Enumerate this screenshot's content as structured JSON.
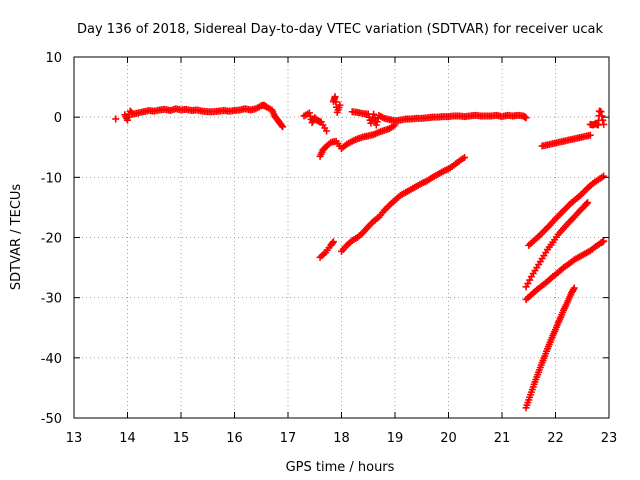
{
  "chart_data": {
    "type": "scatter",
    "title": "Day 136 of 2018, Sidereal Day-to-day VTEC variation (SDTVAR) for receiver ucak",
    "xlabel": "GPS time / hours",
    "ylabel": "SDTVAR / TECUs",
    "xlim": [
      13,
      23
    ],
    "ylim": [
      -50,
      10
    ],
    "xticks": [
      13,
      14,
      15,
      16,
      17,
      18,
      19,
      20,
      21,
      22,
      23
    ],
    "yticks": [
      10,
      0,
      -10,
      -20,
      -30,
      -40,
      -50
    ],
    "grid": true,
    "marker": "plus",
    "color": "#ff0000",
    "grid_color": "#a0a0a0",
    "series": [
      {
        "points": [
          [
            13.78,
            -0.3
          ],
          [
            13.95,
            0.4
          ],
          [
            14.0,
            -0.5
          ],
          [
            14.05,
            1.0
          ],
          [
            14.1,
            0.5
          ],
          [
            14.2,
            0.7
          ],
          [
            14.3,
            0.9
          ],
          [
            14.4,
            1.1
          ],
          [
            14.5,
            1.0
          ],
          [
            14.6,
            1.2
          ],
          [
            14.7,
            1.3
          ],
          [
            14.8,
            1.1
          ],
          [
            14.9,
            1.4
          ],
          [
            15.0,
            1.2
          ],
          [
            15.1,
            1.3
          ],
          [
            15.2,
            1.1
          ],
          [
            15.3,
            1.2
          ],
          [
            15.4,
            1.0
          ],
          [
            15.5,
            0.9
          ],
          [
            15.6,
            0.9
          ],
          [
            15.7,
            1.0
          ],
          [
            15.8,
            1.1
          ],
          [
            15.9,
            1.0
          ],
          [
            16.0,
            1.1
          ],
          [
            16.1,
            1.2
          ],
          [
            16.2,
            1.4
          ],
          [
            16.3,
            1.2
          ],
          [
            16.4,
            1.4
          ],
          [
            16.5,
            1.9
          ],
          [
            16.55,
            2.0
          ],
          [
            16.6,
            1.7
          ],
          [
            16.7,
            1.2
          ],
          [
            16.75,
            0.2
          ],
          [
            16.8,
            -0.4
          ],
          [
            16.85,
            -1.0
          ],
          [
            16.9,
            -1.6
          ]
        ]
      },
      {
        "points": [
          [
            17.3,
            0.2
          ],
          [
            17.4,
            0.7
          ],
          [
            17.45,
            -0.9
          ],
          [
            17.5,
            -0.1
          ],
          [
            17.55,
            -0.6
          ],
          [
            17.62,
            -0.8
          ],
          [
            17.72,
            -2.3
          ],
          [
            17.85,
            2.6
          ],
          [
            17.88,
            3.4
          ],
          [
            17.92,
            0.8
          ],
          [
            17.97,
            2.0
          ]
        ]
      },
      {
        "points": [
          [
            17.6,
            -6.5
          ],
          [
            17.65,
            -5.5
          ],
          [
            17.7,
            -5.0
          ],
          [
            17.8,
            -4.2
          ],
          [
            17.9,
            -4.0
          ],
          [
            18.0,
            -5.2
          ],
          [
            18.1,
            -4.5
          ],
          [
            18.2,
            -4.0
          ],
          [
            18.3,
            -3.6
          ],
          [
            18.4,
            -3.3
          ],
          [
            18.5,
            -3.1
          ],
          [
            18.6,
            -2.9
          ],
          [
            18.7,
            -2.5
          ],
          [
            18.8,
            -2.2
          ],
          [
            18.9,
            -1.9
          ],
          [
            19.0,
            -1.3
          ]
        ]
      },
      {
        "points": [
          [
            18.2,
            0.9
          ],
          [
            18.3,
            0.8
          ],
          [
            18.4,
            0.6
          ],
          [
            18.5,
            0.5
          ],
          [
            18.55,
            -1.0
          ],
          [
            18.6,
            0.5
          ],
          [
            18.65,
            -1.3
          ],
          [
            18.7,
            0.3
          ],
          [
            18.8,
            -0.2
          ],
          [
            18.9,
            -0.4
          ],
          [
            19.0,
            -0.6
          ],
          [
            19.1,
            -0.5
          ],
          [
            19.2,
            -0.3
          ],
          [
            19.3,
            -0.3
          ],
          [
            19.4,
            -0.2
          ],
          [
            19.5,
            -0.2
          ],
          [
            19.6,
            -0.1
          ],
          [
            19.7,
            0.0
          ],
          [
            19.8,
            0.0
          ],
          [
            19.9,
            0.1
          ],
          [
            20.0,
            0.1
          ],
          [
            20.1,
            0.2
          ],
          [
            20.2,
            0.2
          ],
          [
            20.3,
            0.1
          ],
          [
            20.4,
            0.2
          ],
          [
            20.5,
            0.3
          ],
          [
            20.6,
            0.2
          ],
          [
            20.7,
            0.2
          ],
          [
            20.8,
            0.2
          ],
          [
            20.9,
            0.3
          ],
          [
            21.0,
            0.1
          ],
          [
            21.1,
            0.3
          ],
          [
            21.2,
            0.2
          ],
          [
            21.3,
            0.3
          ],
          [
            21.4,
            0.2
          ],
          [
            21.45,
            -0.1
          ]
        ]
      },
      {
        "points": [
          [
            17.6,
            -23.3
          ],
          [
            17.7,
            -22.5
          ],
          [
            17.8,
            -21.3
          ],
          [
            17.85,
            -20.7
          ],
          [
            18.0,
            -22.3
          ],
          [
            18.1,
            -21.3
          ],
          [
            18.2,
            -20.5
          ],
          [
            18.3,
            -20.0
          ],
          [
            18.4,
            -19.2
          ],
          [
            18.5,
            -18.2
          ],
          [
            18.6,
            -17.3
          ],
          [
            18.7,
            -16.6
          ],
          [
            18.8,
            -15.5
          ],
          [
            18.9,
            -14.6
          ],
          [
            19.0,
            -13.8
          ],
          [
            19.1,
            -13.0
          ],
          [
            19.2,
            -12.5
          ],
          [
            19.3,
            -12.0
          ],
          [
            19.4,
            -11.5
          ],
          [
            19.5,
            -11.0
          ],
          [
            19.6,
            -10.6
          ],
          [
            19.7,
            -10.0
          ],
          [
            19.8,
            -9.5
          ],
          [
            19.9,
            -9.0
          ],
          [
            20.0,
            -8.6
          ],
          [
            20.1,
            -8.0
          ],
          [
            20.2,
            -7.3
          ],
          [
            20.3,
            -6.7
          ]
        ]
      },
      {
        "points": [
          [
            21.75,
            -4.8
          ],
          [
            21.85,
            -4.6
          ],
          [
            21.95,
            -4.4
          ],
          [
            22.05,
            -4.2
          ],
          [
            22.15,
            -4.0
          ],
          [
            22.25,
            -3.8
          ],
          [
            22.35,
            -3.6
          ],
          [
            22.45,
            -3.4
          ],
          [
            22.55,
            -3.2
          ],
          [
            22.65,
            -3.0
          ]
        ]
      },
      {
        "points": [
          [
            22.65,
            -1.2
          ],
          [
            22.7,
            -1.3
          ],
          [
            22.75,
            -1.1
          ],
          [
            22.8,
            -1.3
          ],
          [
            22.82,
            1.0
          ],
          [
            22.85,
            0.9
          ],
          [
            22.9,
            -1.2
          ]
        ]
      },
      {
        "points": [
          [
            21.5,
            -21.3
          ],
          [
            21.6,
            -20.5
          ],
          [
            21.7,
            -19.7
          ],
          [
            21.8,
            -18.8
          ],
          [
            21.9,
            -17.9
          ],
          [
            22.0,
            -16.9
          ],
          [
            22.1,
            -16.0
          ],
          [
            22.2,
            -15.1
          ],
          [
            22.3,
            -14.2
          ],
          [
            22.4,
            -13.5
          ],
          [
            22.5,
            -12.7
          ],
          [
            22.6,
            -11.8
          ],
          [
            22.7,
            -11.0
          ],
          [
            22.8,
            -10.4
          ],
          [
            22.9,
            -9.8
          ]
        ]
      },
      {
        "points": [
          [
            21.45,
            -28.2
          ],
          [
            21.55,
            -26.5
          ],
          [
            21.65,
            -25.0
          ],
          [
            21.75,
            -23.5
          ],
          [
            21.85,
            -22.0
          ],
          [
            21.95,
            -20.8
          ],
          [
            22.05,
            -19.5
          ],
          [
            22.15,
            -18.5
          ],
          [
            22.25,
            -17.5
          ],
          [
            22.35,
            -16.6
          ],
          [
            22.45,
            -15.6
          ],
          [
            22.55,
            -14.7
          ],
          [
            22.6,
            -14.2
          ]
        ]
      },
      {
        "points": [
          [
            21.45,
            -30.3
          ],
          [
            21.55,
            -29.5
          ],
          [
            21.65,
            -28.7
          ],
          [
            21.75,
            -28.0
          ],
          [
            21.85,
            -27.3
          ],
          [
            21.95,
            -26.5
          ],
          [
            22.05,
            -25.8
          ],
          [
            22.15,
            -25.0
          ],
          [
            22.25,
            -24.4
          ],
          [
            22.35,
            -23.7
          ],
          [
            22.45,
            -23.2
          ],
          [
            22.55,
            -22.7
          ],
          [
            22.65,
            -22.2
          ],
          [
            22.75,
            -21.5
          ],
          [
            22.85,
            -20.9
          ],
          [
            22.9,
            -20.6
          ]
        ]
      },
      {
        "points": [
          [
            21.45,
            -48.3
          ],
          [
            21.5,
            -47.0
          ],
          [
            21.55,
            -45.7
          ],
          [
            21.6,
            -44.4
          ],
          [
            21.65,
            -43.2
          ],
          [
            21.7,
            -42.0
          ],
          [
            21.75,
            -40.8
          ],
          [
            21.8,
            -39.7
          ],
          [
            21.85,
            -38.5
          ],
          [
            21.9,
            -37.4
          ],
          [
            21.95,
            -36.3
          ],
          [
            22.0,
            -35.3
          ],
          [
            22.05,
            -34.2
          ],
          [
            22.1,
            -33.2
          ],
          [
            22.15,
            -32.1
          ],
          [
            22.2,
            -31.2
          ],
          [
            22.25,
            -30.2
          ],
          [
            22.3,
            -29.2
          ],
          [
            22.35,
            -28.4
          ]
        ]
      }
    ]
  }
}
